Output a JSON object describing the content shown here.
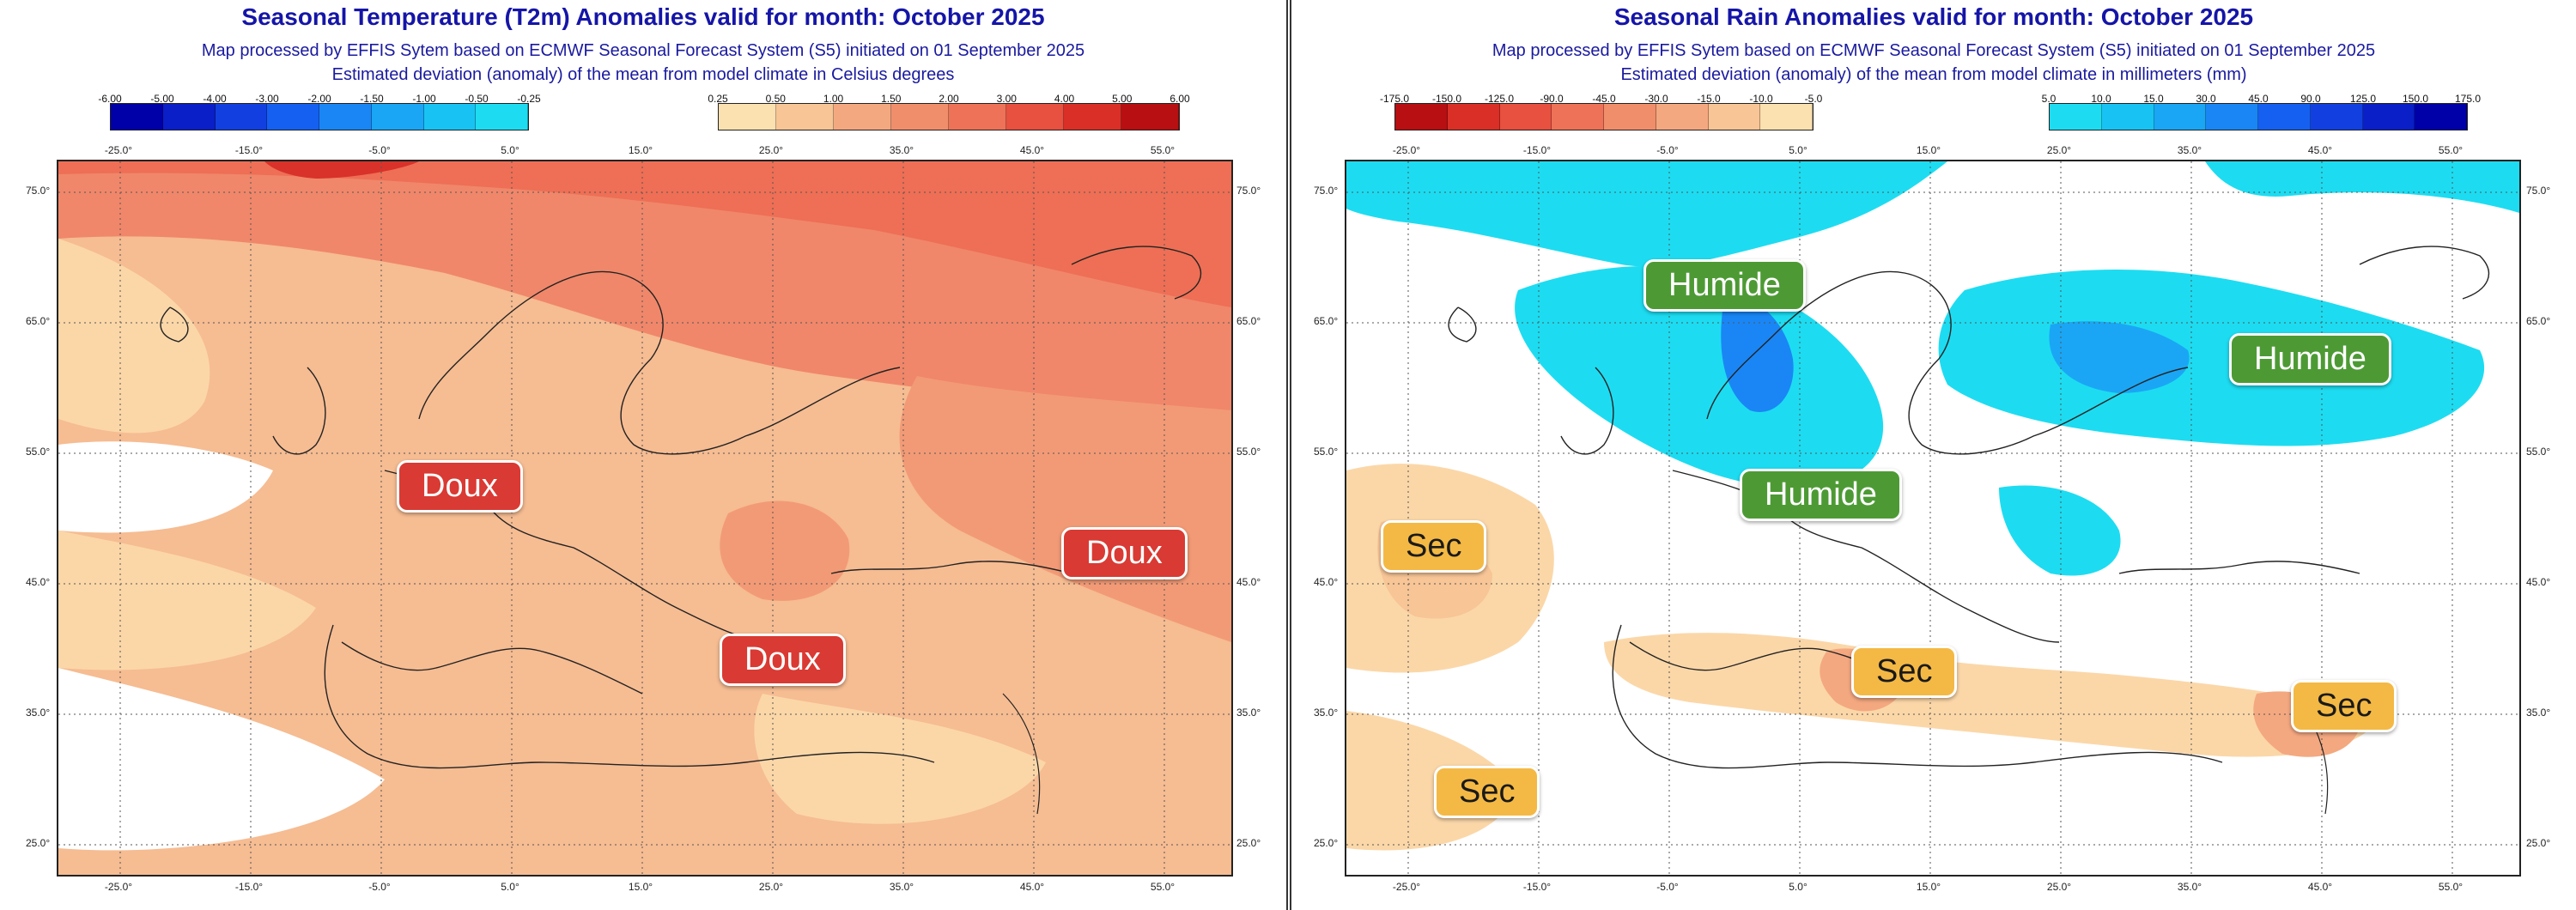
{
  "left": {
    "title": "Seasonal Temperature (T2m) Anomalies valid for month: October 2025",
    "subtitle1": "Map processed by EFFIS Sytem based on ECMWF Seasonal Forecast System (S5) initiated on 01 September 2025",
    "subtitle2": "Estimated deviation (anomaly) of the mean from model climate in Celsius degrees",
    "legend_neg": {
      "ticks": [
        "-6.00",
        "-5.00",
        "-4.00",
        "-3.00",
        "-2.00",
        "-1.50",
        "-1.00",
        "-0.50",
        "-0.25"
      ],
      "colors": [
        "#0000a8",
        "#0a1fc8",
        "#1240e0",
        "#1560f0",
        "#1a86f5",
        "#1aa6f5",
        "#18c3f3",
        "#1ddcf1"
      ]
    },
    "legend_pos": {
      "ticks": [
        "0.25",
        "0.50",
        "1.00",
        "1.50",
        "2.00",
        "3.00",
        "4.00",
        "5.00",
        "6.00"
      ],
      "colors": [
        "#fbe0b0",
        "#f7c596",
        "#f4a880",
        "#f08e6b",
        "#ee7257",
        "#e8503f",
        "#d92f26",
        "#b80f12"
      ]
    },
    "lon_labels": [
      "-25.0°",
      "-15.0°",
      "-5.0°",
      "5.0°",
      "15.0°",
      "25.0°",
      "35.0°",
      "45.0°",
      "55.0°"
    ],
    "lat_labels": [
      "75.0°",
      "65.0°",
      "55.0°",
      "45.0°",
      "35.0°",
      "25.0°"
    ],
    "tags": [
      "Doux",
      "Doux",
      "Doux"
    ]
  },
  "right": {
    "title": "Seasonal Rain Anomalies valid for month: October 2025",
    "subtitle1": "Map processed by EFFIS Sytem based on ECMWF Seasonal Forecast System (S5) initiated on 01 September 2025",
    "subtitle2": "Estimated deviation (anomaly) of the mean from model climate in millimeters (mm)",
    "legend_neg": {
      "ticks": [
        "-175.0",
        "-150.0",
        "-125.0",
        "-90.0",
        "-45.0",
        "-30.0",
        "-15.0",
        "-10.0",
        "-5.0"
      ],
      "colors": [
        "#b80f12",
        "#d92f26",
        "#e8503f",
        "#ee7257",
        "#f08e6b",
        "#f4a880",
        "#f7c596",
        "#fbe0b0"
      ]
    },
    "legend_pos": {
      "ticks": [
        "5.0",
        "10.0",
        "15.0",
        "30.0",
        "45.0",
        "90.0",
        "125.0",
        "150.0",
        "175.0"
      ],
      "colors": [
        "#1ddcf1",
        "#18c3f3",
        "#1aa6f5",
        "#1a86f5",
        "#1560f0",
        "#1240e0",
        "#0a1fc8",
        "#0000a8"
      ]
    },
    "lon_labels": [
      "-25.0°",
      "-15.0°",
      "-5.0°",
      "5.0°",
      "15.0°",
      "25.0°",
      "35.0°",
      "45.0°",
      "55.0°"
    ],
    "lat_labels": [
      "75.0°",
      "65.0°",
      "55.0°",
      "45.0°",
      "35.0°",
      "25.0°"
    ],
    "tags": [
      "Humide",
      "Humide",
      "Humide",
      "Sec",
      "Sec",
      "Sec",
      "Sec"
    ]
  }
}
